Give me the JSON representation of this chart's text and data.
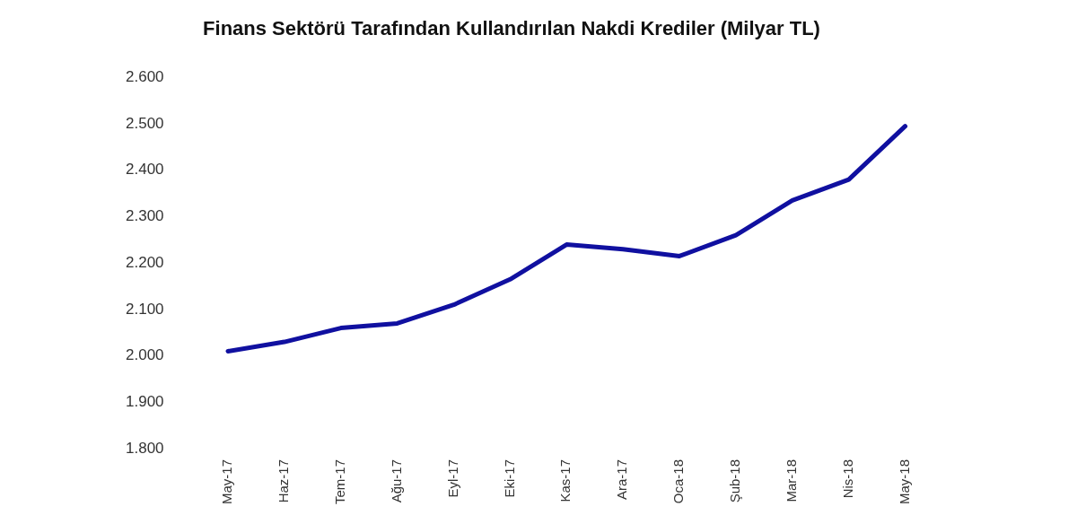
{
  "chart_data": {
    "type": "line",
    "title": "Finans Sektörü Tarafından Kullandırılan Nakdi Krediler (Milyar TL)",
    "categories": [
      "May-17",
      "Haz-17",
      "Tem-17",
      "Ağu-17",
      "Eyl-17",
      "Eki-17",
      "Kas-17",
      "Ara-17",
      "Oca-18",
      "Şub-18",
      "Mar-18",
      "Nis-18",
      "May-18"
    ],
    "series": [
      {
        "color": "#1010a0",
        "values": [
          2010,
          2030,
          2060,
          2070,
          2110,
          2165,
          2240,
          2230,
          2215,
          2260,
          2335,
          2380,
          2495
        ]
      }
    ],
    "ylim": [
      1800,
      2600
    ],
    "yticks": [
      {
        "value": 1800,
        "label": "1.800"
      },
      {
        "value": 1900,
        "label": "1.900"
      },
      {
        "value": 2000,
        "label": "2.000"
      },
      {
        "value": 2100,
        "label": "2.100"
      },
      {
        "value": 2200,
        "label": "2.200"
      },
      {
        "value": 2300,
        "label": "2.300"
      },
      {
        "value": 2400,
        "label": "2.400"
      },
      {
        "value": 2500,
        "label": "2.500"
      },
      {
        "value": 2600,
        "label": "2.600"
      }
    ],
    "grid": false,
    "legend": false,
    "marker": "none",
    "line_style": "solid"
  }
}
